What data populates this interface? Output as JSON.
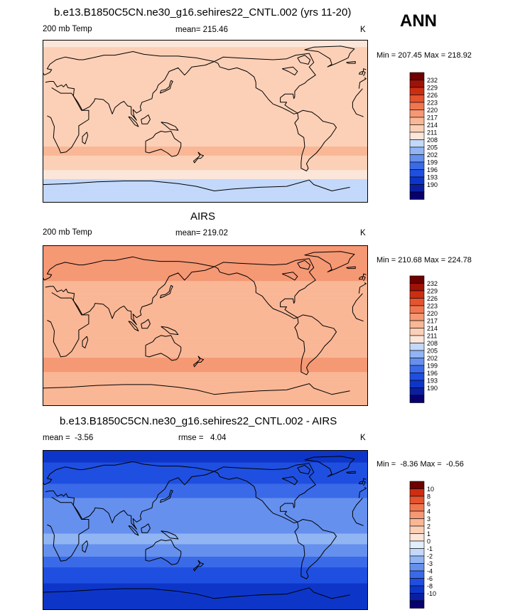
{
  "season": "ANN",
  "palette": {
    "temp": [
      "#08006e",
      "#0a1fa0",
      "#0d36c8",
      "#1f4fe0",
      "#3a6ae8",
      "#6590ee",
      "#91b4f3",
      "#c3d8fa",
      "#fbe6d9",
      "#fcd0b7",
      "#f9b796",
      "#f59874",
      "#f07650",
      "#e4542f",
      "#cc2e12",
      "#a01208",
      "#6e0000"
    ],
    "diff": [
      "#08006e",
      "#0a1fa0",
      "#0d36c8",
      "#1f4fe0",
      "#3a6ae8",
      "#6590ee",
      "#91b4f3",
      "#c3d8fa",
      "#e3eefc",
      "#fbe6d9",
      "#fcd0b7",
      "#f9b796",
      "#f59874",
      "#f07650",
      "#e4542f",
      "#cc2e12",
      "#6e0000"
    ]
  },
  "chart_data": [
    {
      "type": "heatmap",
      "title": "b.e13.B1850C5CN.ne30_g16.sehires22_CNTL.002 (yrs 11-20)",
      "left_label": "200 mb Temp",
      "center_label": "mean= 215.46",
      "units": "K",
      "range_label": "Min = 207.45 Max = 218.92",
      "min": 207.45,
      "max": 218.92,
      "mean": 215.46,
      "colorbar": {
        "palette": "temp",
        "levels": [
          "232",
          "229",
          "226",
          "223",
          "220",
          "217",
          "214",
          "211",
          "208",
          "205",
          "202",
          "199",
          "196",
          "193",
          "190"
        ]
      },
      "bands": [
        {
          "lat": 90,
          "value": 212.5
        },
        {
          "lat": 80,
          "value": 214.5
        },
        {
          "lat": 62,
          "value": 215.5
        },
        {
          "lat": 50,
          "value": 216.5
        },
        {
          "lat": 38,
          "value": 216.8
        },
        {
          "lat": 25,
          "value": 216.0
        },
        {
          "lat": 10,
          "value": 215.8
        },
        {
          "lat": -5,
          "value": 216.5
        },
        {
          "lat": -20,
          "value": 216.8
        },
        {
          "lat": -35,
          "value": 217.2
        },
        {
          "lat": -45,
          "value": 216.4
        },
        {
          "lat": -55,
          "value": 213.8
        },
        {
          "lat": -68,
          "value": 209.5
        },
        {
          "lat": -90,
          "value": 208.2
        }
      ]
    },
    {
      "type": "heatmap",
      "title": "AIRS",
      "left_label": "200 mb Temp",
      "center_label": "mean= 219.02",
      "units": "K",
      "range_label": "Min = 210.68 Max = 224.78",
      "min": 210.68,
      "max": 224.78,
      "mean": 219.02,
      "colorbar": {
        "palette": "temp",
        "levels": [
          "232",
          "229",
          "226",
          "223",
          "220",
          "217",
          "214",
          "211",
          "208",
          "205",
          "202",
          "199",
          "196",
          "193",
          "190"
        ]
      },
      "bands": [
        {
          "lat": 90,
          "value": 221.0
        },
        {
          "lat": 75,
          "value": 222.0
        },
        {
          "lat": 60,
          "value": 220.8
        },
        {
          "lat": 45,
          "value": 219.5
        },
        {
          "lat": 30,
          "value": 219.8
        },
        {
          "lat": 15,
          "value": 218.5
        },
        {
          "lat": 0,
          "value": 219.2
        },
        {
          "lat": -15,
          "value": 218.4
        },
        {
          "lat": -30,
          "value": 219.6
        },
        {
          "lat": -45,
          "value": 220.6
        },
        {
          "lat": -60,
          "value": 219.2
        },
        {
          "lat": -75,
          "value": 218.2
        },
        {
          "lat": -90,
          "value": 217.8
        }
      ]
    },
    {
      "type": "heatmap",
      "title": "b.e13.B1850C5CN.ne30_g16.sehires22_CNTL.002 - AIRS",
      "left_label": "mean =  -3.56",
      "center_label": "rmse =   4.04",
      "units": "K",
      "range_label": "Min =  -8.36 Max =  -0.56",
      "min": -8.36,
      "max": -0.56,
      "mean": -3.56,
      "rmse": 4.04,
      "colorbar": {
        "palette": "diff",
        "levels": [
          "10",
          "8",
          "6",
          "4",
          "3",
          "2",
          "1",
          "0",
          "-1",
          "-2",
          "-3",
          "-4",
          "-6",
          "-8",
          "-10"
        ]
      },
      "bands": [
        {
          "lat": 90,
          "value": -6.8
        },
        {
          "lat": 75,
          "value": -6.0
        },
        {
          "lat": 60,
          "value": -4.8
        },
        {
          "lat": 45,
          "value": -3.3
        },
        {
          "lat": 30,
          "value": -2.8
        },
        {
          "lat": 15,
          "value": -2.5
        },
        {
          "lat": 0,
          "value": -2.3
        },
        {
          "lat": -10,
          "value": -1.6
        },
        {
          "lat": -25,
          "value": -2.6
        },
        {
          "lat": -40,
          "value": -3.8
        },
        {
          "lat": -55,
          "value": -5.3
        },
        {
          "lat": -70,
          "value": -7.5
        },
        {
          "lat": -90,
          "value": -8.0
        }
      ]
    }
  ]
}
